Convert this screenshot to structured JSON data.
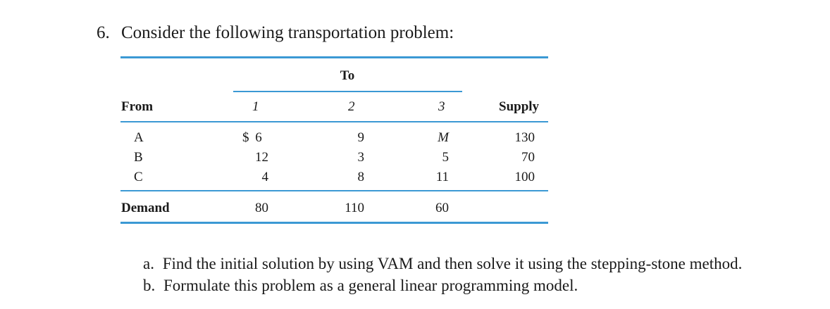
{
  "problem": {
    "number": "6.",
    "text": "Consider the following transportation problem:"
  },
  "table": {
    "to_label": "To",
    "from_label": "From",
    "supply_label": "Supply",
    "demand_label": "Demand",
    "columns": [
      "1",
      "2",
      "3"
    ],
    "rows": [
      {
        "label": "A",
        "costs": [
          "$ 6",
          "9",
          "M"
        ],
        "supply": "130"
      },
      {
        "label": "B",
        "costs": [
          "12",
          "3",
          "5"
        ],
        "supply": "70"
      },
      {
        "label": "C",
        "costs": [
          "4",
          "8",
          "11"
        ],
        "supply": "100"
      }
    ],
    "demand": [
      "80",
      "110",
      "60"
    ],
    "rule_color": "#3b99d4"
  },
  "parts": [
    {
      "letter": "a.",
      "text": "Find the initial solution by using VAM and then solve it using the stepping-stone method."
    },
    {
      "letter": "b.",
      "text": "Formulate this problem as a general linear programming model."
    }
  ]
}
